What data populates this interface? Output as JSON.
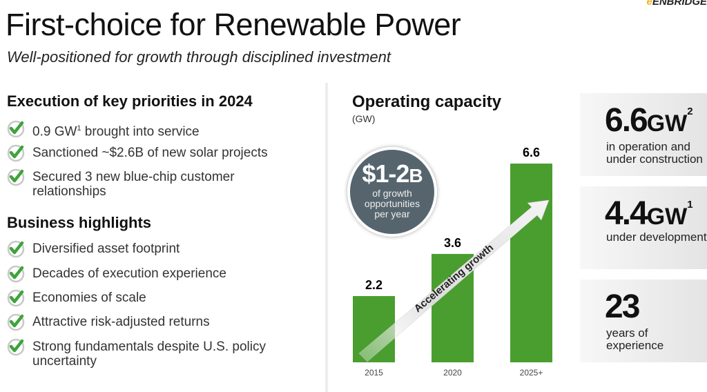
{
  "header": {
    "title": "First-choice for Renewable Power",
    "subtitle": "Well-positioned for growth through disciplined investment",
    "logo": "ENBRIDGE"
  },
  "priorities": {
    "heading": "Execution of key priorities in 2024",
    "items": [
      {
        "text": "0.9 GW",
        "sup": "1",
        "rest": " brought into service"
      },
      {
        "text": "Sanctioned ~$2.6B of new solar projects"
      },
      {
        "text": "Secured 3 new blue-chip customer relationships"
      }
    ]
  },
  "highlights": {
    "heading": "Business highlights",
    "items": [
      "Diversified asset footprint",
      "Decades of execution experience",
      "Economies of scale",
      "Attractive risk-adjusted returns",
      "Strong fundamentals despite U.S. policy uncertainty"
    ]
  },
  "colors": {
    "bar": "#4a9e2f",
    "check": "#3ea33a",
    "circle": "#56656d"
  },
  "callout": {
    "value": "$1-2",
    "unit": "B",
    "text": "of growth opportunities per year"
  },
  "arrow_label": "Accelerating growth",
  "stats": [
    {
      "value": "6.6",
      "unit": "GW",
      "sup": "2",
      "desc": "in operation and under construction"
    },
    {
      "value": "4.4",
      "unit": "GW",
      "sup": "1",
      "desc": "under development"
    },
    {
      "value": "23",
      "unit": "",
      "sup": "",
      "desc": "years of experience"
    }
  ],
  "chart_data": {
    "type": "bar",
    "title": "Operating capacity",
    "subtitle": "(GW)",
    "categories": [
      "2015",
      "2020",
      "2025+"
    ],
    "values": [
      2.2,
      3.6,
      6.6
    ],
    "data_labels": [
      "2.2",
      "3.6",
      "6.6"
    ],
    "ylim": [
      0,
      6.6
    ],
    "grid": false
  }
}
